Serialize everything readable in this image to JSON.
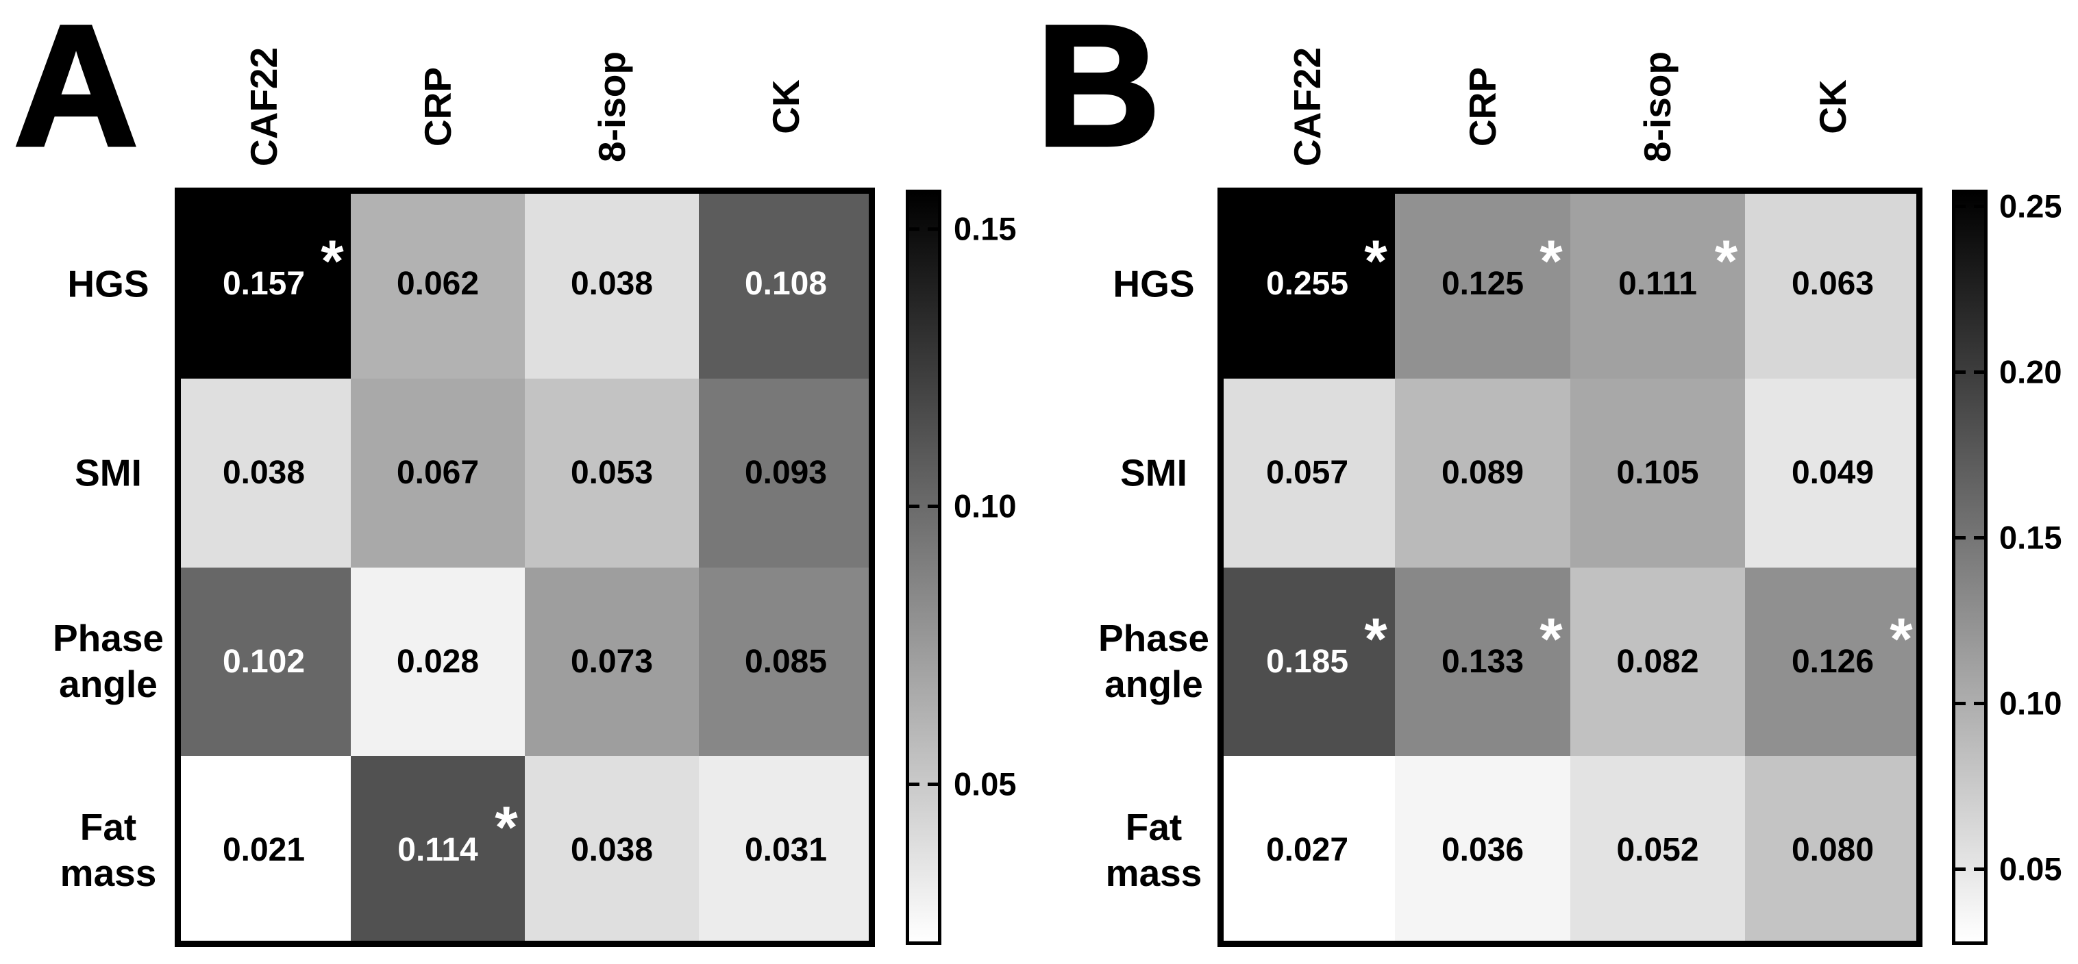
{
  "figure": {
    "background": "#ffffff",
    "colormap_low_color": "#ffffff",
    "colormap_high_color": "#000000"
  },
  "chart_data": [
    {
      "type": "heatmap",
      "panel": "A",
      "x_categories": [
        "CAF22",
        "CRP",
        "8-isop",
        "CK"
      ],
      "y_categories": [
        "HGS",
        "SMI",
        "Phase angle",
        "Fat mass"
      ],
      "y_categories_display": [
        "HGS",
        "SMI",
        "Phase\nangle",
        "Fat\nmass"
      ],
      "values": [
        [
          0.157,
          0.062,
          0.038,
          0.108
        ],
        [
          0.038,
          0.067,
          0.053,
          0.093
        ],
        [
          0.102,
          0.028,
          0.073,
          0.085
        ],
        [
          0.021,
          0.114,
          0.038,
          0.031
        ]
      ],
      "value_labels": [
        [
          "0.157",
          "0.062",
          "0.038",
          "0.108"
        ],
        [
          "0.038",
          "0.067",
          "0.053",
          "0.093"
        ],
        [
          "0.102",
          "0.028",
          "0.073",
          "0.085"
        ],
        [
          "0.021",
          "0.114",
          "0.038",
          "0.031"
        ]
      ],
      "significant_mask": [
        [
          1,
          0,
          0,
          0
        ],
        [
          0,
          0,
          0,
          0
        ],
        [
          0,
          0,
          0,
          0
        ],
        [
          0,
          1,
          0,
          0
        ]
      ],
      "significance_marker": "*",
      "colorbar": {
        "position": "right",
        "vmin": 0.021,
        "vmax": 0.157,
        "tick_values": [
          0.15,
          0.1,
          0.05
        ],
        "tick_labels": [
          "0.15",
          "0.10",
          "0.05"
        ],
        "gradient": [
          "#000000",
          "#ffffff"
        ]
      }
    },
    {
      "type": "heatmap",
      "panel": "B",
      "x_categories": [
        "CAF22",
        "CRP",
        "8-isop",
        "CK"
      ],
      "y_categories": [
        "HGS",
        "SMI",
        "Phase angle",
        "Fat mass"
      ],
      "y_categories_display": [
        "HGS",
        "SMI",
        "Phase\nangle",
        "Fat\nmass"
      ],
      "values": [
        [
          0.255,
          0.125,
          0.111,
          0.063
        ],
        [
          0.057,
          0.089,
          0.105,
          0.049
        ],
        [
          0.185,
          0.133,
          0.082,
          0.126
        ],
        [
          0.027,
          0.036,
          0.052,
          0.08
        ]
      ],
      "value_labels": [
        [
          "0.255",
          "0.125",
          "0.111",
          "0.063"
        ],
        [
          "0.057",
          "0.089",
          "0.105",
          "0.049"
        ],
        [
          "0.185",
          "0.133",
          "0.082",
          "0.126"
        ],
        [
          "0.027",
          "0.036",
          "0.052",
          "0.080"
        ]
      ],
      "significant_mask": [
        [
          1,
          1,
          1,
          0
        ],
        [
          0,
          0,
          0,
          0
        ],
        [
          1,
          1,
          0,
          1
        ],
        [
          0,
          0,
          0,
          0
        ]
      ],
      "significance_marker": "*",
      "colorbar": {
        "position": "right",
        "vmin": 0.027,
        "vmax": 0.255,
        "tick_values": [
          0.25,
          0.2,
          0.15,
          0.1,
          0.05
        ],
        "tick_labels": [
          "0.25",
          "0.20",
          "0.15",
          "0.10",
          "0.05"
        ],
        "gradient": [
          "#000000",
          "#ffffff"
        ]
      }
    }
  ]
}
